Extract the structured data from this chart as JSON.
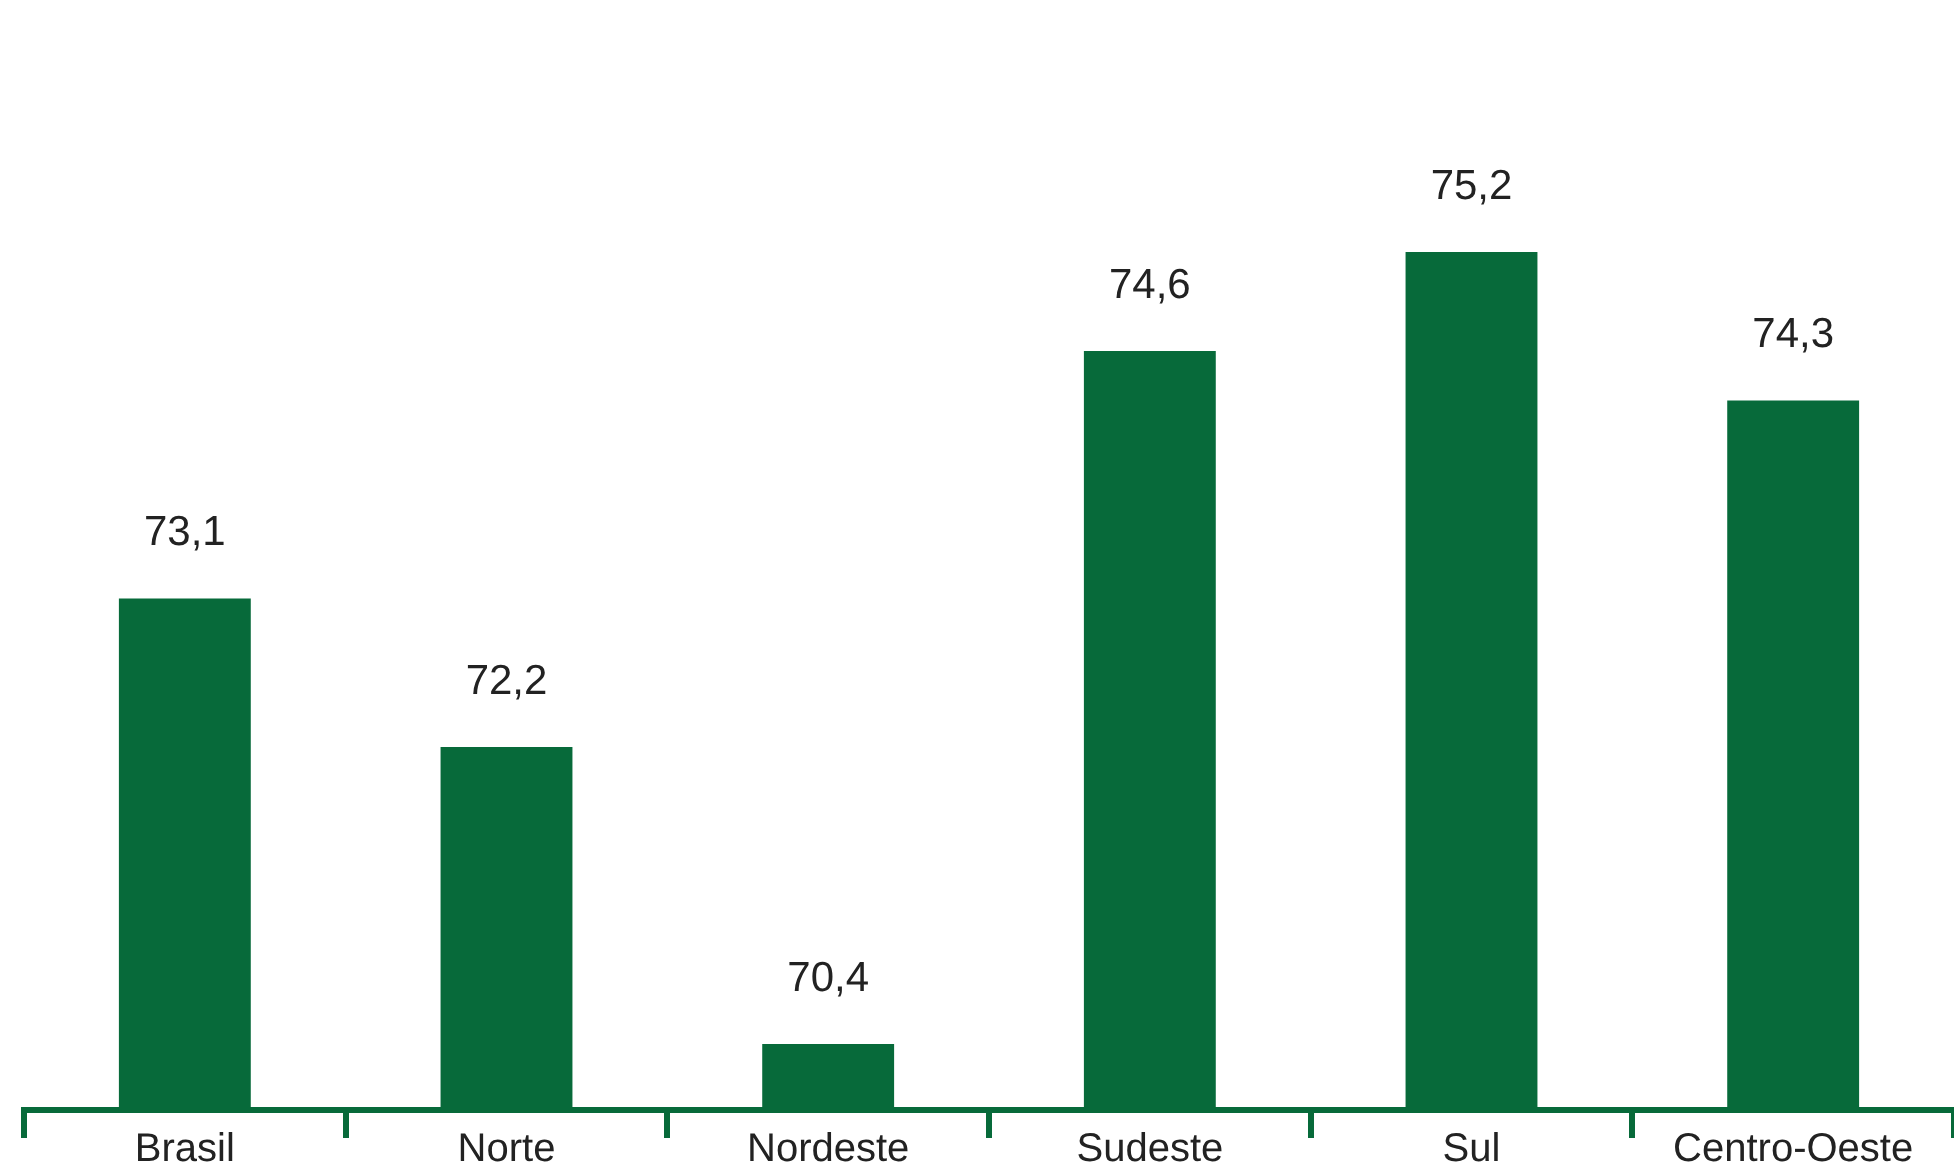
{
  "chart_data": {
    "type": "bar",
    "categories": [
      "Brasil",
      "Norte",
      "Nordeste",
      "Sudeste",
      "Sul",
      "Centro-Oeste"
    ],
    "values": [
      73.1,
      72.2,
      70.4,
      74.6,
      75.2,
      74.3
    ],
    "value_labels": [
      "73,1",
      "72,2",
      "70,4",
      "74,6",
      "75,2",
      "74,3"
    ],
    "color": "#076a3a",
    "tick_labels": "x",
    "grid": false,
    "legend": false
  }
}
